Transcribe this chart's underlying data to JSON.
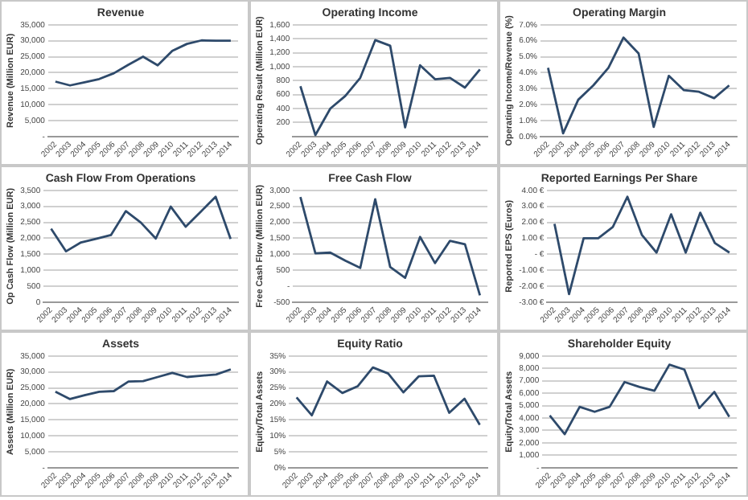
{
  "chart_data": [
    {
      "type": "line",
      "title": "Revenue",
      "ylabel": "Revenue (Million EUR)",
      "categories": [
        "2002",
        "2003",
        "2004",
        "2005",
        "2006",
        "2007",
        "2008",
        "2009",
        "2010",
        "2011",
        "2012",
        "2013",
        "2014"
      ],
      "series": [
        {
          "color": "#2e4a6b",
          "values": [
            17200,
            16000,
            17000,
            18000,
            19800,
            22500,
            25000,
            22300,
            26800,
            29000,
            30100,
            30000,
            30000
          ]
        }
      ],
      "ylim": [
        0,
        35000
      ],
      "yticks": [
        {
          "value": 0,
          "label": "-"
        },
        {
          "value": 5000,
          "label": "5,000"
        },
        {
          "value": 10000,
          "label": "10,000"
        },
        {
          "value": 15000,
          "label": "15,000"
        },
        {
          "value": 20000,
          "label": "20,000"
        },
        {
          "value": 25000,
          "label": "25,000"
        },
        {
          "value": 30000,
          "label": "30,000"
        },
        {
          "value": 35000,
          "label": "35,000"
        }
      ],
      "grid": "y",
      "marker": "none"
    },
    {
      "type": "line",
      "title": "Operating Income",
      "ylabel": "Operating Result (Million EUR)",
      "categories": [
        "2002",
        "2003",
        "2004",
        "2005",
        "2006",
        "2007",
        "2008",
        "2009",
        "2010",
        "2011",
        "2012",
        "2013",
        "2014"
      ],
      "series": [
        {
          "color": "#2e4a6b",
          "values": [
            720,
            20,
            400,
            580,
            840,
            1380,
            1300,
            130,
            1020,
            820,
            840,
            700,
            960
          ]
        }
      ],
      "ylim": [
        0,
        1600
      ],
      "yticks": [
        {
          "value": 0,
          "label": null
        },
        200,
        400,
        600,
        800,
        {
          "value": 1000,
          "label": "1,000"
        },
        {
          "value": 1200,
          "label": "1,200"
        },
        {
          "value": 1400,
          "label": "1,400"
        },
        {
          "value": 1600,
          "label": "1,600"
        }
      ],
      "grid": "y",
      "marker": "none"
    },
    {
      "type": "line",
      "title": "Operating Margin",
      "ylabel": "Operating Income/Revenue (%)",
      "categories": [
        "2002",
        "2003",
        "2004",
        "2005",
        "2006",
        "2007",
        "2008",
        "2009",
        "2010",
        "2011",
        "2012",
        "2013",
        "2014"
      ],
      "series": [
        {
          "color": "#2e4a6b",
          "values": [
            4.3,
            0.2,
            2.3,
            3.2,
            4.3,
            6.2,
            5.2,
            0.6,
            3.8,
            2.9,
            2.8,
            2.4,
            3.2
          ]
        }
      ],
      "ylim": [
        0,
        7
      ],
      "yticks": [
        {
          "value": 0,
          "label": "0.0%"
        },
        {
          "value": 1,
          "label": "1.0%"
        },
        {
          "value": 2,
          "label": "2.0%"
        },
        {
          "value": 3,
          "label": "3.0%"
        },
        {
          "value": 4,
          "label": "4.0%"
        },
        {
          "value": 5,
          "label": "5.0%"
        },
        {
          "value": 6,
          "label": "6.0%"
        },
        {
          "value": 7,
          "label": "7.0%"
        }
      ],
      "grid": "y",
      "marker": "none"
    },
    {
      "type": "line",
      "title": "Cash Flow From Operations",
      "ylabel": "Op Cash Flow (Million EUR)",
      "categories": [
        "2002",
        "2003",
        "2004",
        "2005",
        "2006",
        "2007",
        "2008",
        "2009",
        "2010",
        "2011",
        "2012",
        "2013",
        "2014"
      ],
      "series": [
        {
          "color": "#2e4a6b",
          "values": [
            2300,
            1590,
            1870,
            1980,
            2100,
            2850,
            2490,
            1990,
            2990,
            2360,
            2830,
            3300,
            1980
          ]
        }
      ],
      "ylim": [
        0,
        3500
      ],
      "yticks": [
        0,
        500,
        {
          "value": 1000,
          "label": "1,000"
        },
        {
          "value": 1500,
          "label": "1,500"
        },
        {
          "value": 2000,
          "label": "2,000"
        },
        {
          "value": 2500,
          "label": "2,500"
        },
        {
          "value": 3000,
          "label": "3,000"
        },
        {
          "value": 3500,
          "label": "3,500"
        }
      ],
      "grid": "y",
      "marker": "none"
    },
    {
      "type": "line",
      "title": "Free Cash Flow",
      "ylabel": "Free Cash Flow (Million EUR)",
      "categories": [
        "2002",
        "2003",
        "2004",
        "2005",
        "2006",
        "2007",
        "2008",
        "2009",
        "2010",
        "2011",
        "2012",
        "2013",
        "2014"
      ],
      "series": [
        {
          "color": "#2e4a6b",
          "values": [
            2790,
            1030,
            1050,
            800,
            570,
            2720,
            600,
            260,
            1540,
            720,
            1420,
            1310,
            -290
          ]
        }
      ],
      "ylim": [
        -500,
        3000
      ],
      "yticks": [
        {
          "value": -500,
          "label": "-500"
        },
        {
          "value": 0,
          "label": "-"
        },
        500,
        {
          "value": 1000,
          "label": "1,000"
        },
        {
          "value": 1500,
          "label": "1,500"
        },
        {
          "value": 2000,
          "label": "2,000"
        },
        {
          "value": 2500,
          "label": "2,500"
        },
        {
          "value": 3000,
          "label": "3,000"
        }
      ],
      "grid": "y",
      "marker": "none"
    },
    {
      "type": "line",
      "title": "Reported Earnings Per Share",
      "ylabel": "Reported EPS (Euros)",
      "categories": [
        "2002",
        "2003",
        "2004",
        "2005",
        "2006",
        "2007",
        "2008",
        "2009",
        "2010",
        "2011",
        "2012",
        "2013",
        "2014"
      ],
      "series": [
        {
          "color": "#2e4a6b",
          "values": [
            1.9,
            -2.5,
            1.0,
            1.0,
            1.7,
            3.6,
            1.2,
            0.1,
            2.5,
            0.1,
            2.6,
            0.7,
            0.1
          ]
        }
      ],
      "ylim": [
        -3,
        4
      ],
      "yticks": [
        {
          "value": -3,
          "label": "-3.00 €"
        },
        {
          "value": -2,
          "label": "-2.00 €"
        },
        {
          "value": -1,
          "label": "-1.00 €"
        },
        {
          "value": 0,
          "label": "- €"
        },
        {
          "value": 1,
          "label": "1.00 €"
        },
        {
          "value": 2,
          "label": "2.00 €"
        },
        {
          "value": 3,
          "label": "3.00 €"
        },
        {
          "value": 4,
          "label": "4.00 €"
        }
      ],
      "grid": "y",
      "marker": "none"
    },
    {
      "type": "line",
      "title": "Assets",
      "ylabel": "Assets (Million EUR)",
      "categories": [
        "2002",
        "2003",
        "2004",
        "2005",
        "2006",
        "2007",
        "2008",
        "2009",
        "2010",
        "2011",
        "2012",
        "2013",
        "2014"
      ],
      "series": [
        {
          "color": "#2e4a6b",
          "values": [
            23800,
            21500,
            22700,
            23800,
            24000,
            27000,
            27100,
            28400,
            29700,
            28400,
            28800,
            29200,
            30800
          ]
        }
      ],
      "ylim": [
        0,
        35000
      ],
      "yticks": [
        {
          "value": 0,
          "label": "-"
        },
        {
          "value": 5000,
          "label": "5,000"
        },
        {
          "value": 10000,
          "label": "10,000"
        },
        {
          "value": 15000,
          "label": "15,000"
        },
        {
          "value": 20000,
          "label": "20,000"
        },
        {
          "value": 25000,
          "label": "25,000"
        },
        {
          "value": 30000,
          "label": "30,000"
        },
        {
          "value": 35000,
          "label": "35,000"
        }
      ],
      "grid": "y",
      "marker": "none"
    },
    {
      "type": "line",
      "title": "Equity Ratio",
      "ylabel": "Equity/Total Assets",
      "categories": [
        "2002",
        "2003",
        "2004",
        "2005",
        "2006",
        "2007",
        "2008",
        "2009",
        "2010",
        "2011",
        "2012",
        "2013",
        "2014"
      ],
      "series": [
        {
          "color": "#2e4a6b",
          "values": [
            22,
            16.4,
            27,
            23.4,
            25.5,
            31.4,
            29.5,
            23.6,
            28.6,
            28.8,
            17.2,
            21.6,
            13.4
          ]
        }
      ],
      "ylim": [
        0,
        35
      ],
      "yticks": [
        {
          "value": 0,
          "label": "0%"
        },
        {
          "value": 5,
          "label": "5%"
        },
        {
          "value": 10,
          "label": "10%"
        },
        {
          "value": 15,
          "label": "15%"
        },
        {
          "value": 20,
          "label": "20%"
        },
        {
          "value": 25,
          "label": "25%"
        },
        {
          "value": 30,
          "label": "30%"
        },
        {
          "value": 35,
          "label": "35%"
        }
      ],
      "grid": "y",
      "marker": "none"
    },
    {
      "type": "line",
      "title": "Shareholder Equity",
      "ylabel": "Equity/Total Assets",
      "categories": [
        "2002",
        "2003",
        "2004",
        "2005",
        "2006",
        "2007",
        "2008",
        "2009",
        "2010",
        "2011",
        "2012",
        "2013",
        "2014"
      ],
      "series": [
        {
          "color": "#2e4a6b",
          "values": [
            4200,
            2700,
            4900,
            4500,
            4900,
            6900,
            6500,
            6200,
            8300,
            7900,
            4800,
            6100,
            4100
          ]
        }
      ],
      "ylim": [
        0,
        9000
      ],
      "yticks": [
        {
          "value": 0,
          "label": "-"
        },
        {
          "value": 1000,
          "label": "1,000"
        },
        {
          "value": 2000,
          "label": "2,000"
        },
        {
          "value": 3000,
          "label": "3,000"
        },
        {
          "value": 4000,
          "label": "4,000"
        },
        {
          "value": 5000,
          "label": "5,000"
        },
        {
          "value": 6000,
          "label": "6,000"
        },
        {
          "value": 7000,
          "label": "7,000"
        },
        {
          "value": 8000,
          "label": "8,000"
        },
        {
          "value": 9000,
          "label": "9,000"
        }
      ],
      "grid": "y",
      "marker": "none"
    }
  ]
}
